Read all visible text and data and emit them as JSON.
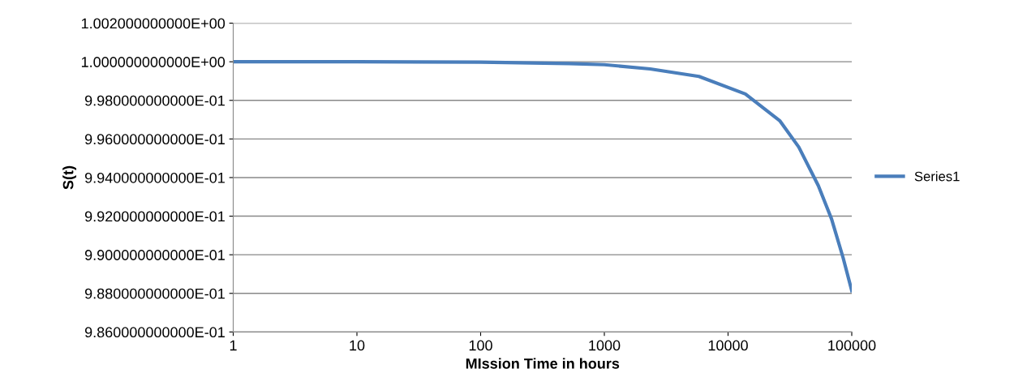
{
  "chart_data": {
    "type": "line",
    "xlabel": "MIssion Time in hours",
    "ylabel": "S(t)",
    "log": "x",
    "x": [
      1,
      10,
      100,
      517,
      1000,
      2345,
      5820,
      13800,
      26300,
      37300,
      53700,
      68600,
      85000,
      100000
    ],
    "series": [
      {
        "name": "Series1",
        "color": "#4a7ebb",
        "values": [
          1.0,
          1.0,
          0.99998,
          0.99991,
          0.99985,
          0.99963,
          0.99924,
          0.99833,
          0.99693,
          0.99558,
          0.99358,
          0.99186,
          0.98986,
          0.98814
        ]
      }
    ],
    "xlim": [
      1,
      100000
    ],
    "xticks": [
      1,
      10,
      100,
      1000,
      10000,
      100000
    ],
    "ylim": [
      0.986,
      1.002
    ],
    "yticks": [
      {
        "value": 0.986,
        "label": "9.860000000000E-01"
      },
      {
        "value": 0.988,
        "label": "9.880000000000E-01"
      },
      {
        "value": 0.99,
        "label": "9.900000000000E-01"
      },
      {
        "value": 0.992,
        "label": "9.920000000000E-01"
      },
      {
        "value": 0.994,
        "label": "9.940000000000E-01"
      },
      {
        "value": 0.996,
        "label": "9.960000000000E-01"
      },
      {
        "value": 0.998,
        "label": "9.980000000000E-01"
      },
      {
        "value": 1.0,
        "label": "1.000000000000E+00"
      },
      {
        "value": 1.002,
        "label": "1.002000000000E+00"
      }
    ],
    "grid": "y",
    "legend": "right",
    "marker": "none",
    "line_style": "solid"
  }
}
